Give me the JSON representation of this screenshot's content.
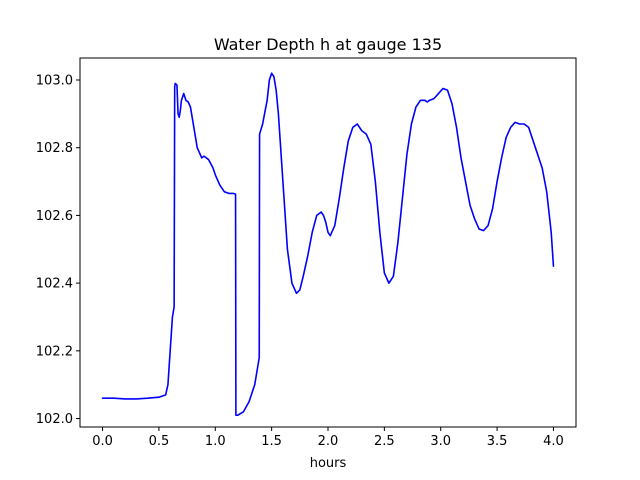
{
  "chart_data": {
    "type": "line",
    "title": "Water Depth h at gauge 135",
    "xlabel": "hours",
    "ylabel": "",
    "xlim": [
      -0.2,
      4.2
    ],
    "ylim": [
      101.975,
      103.065
    ],
    "xticks": [
      0.0,
      0.5,
      1.0,
      1.5,
      2.0,
      2.5,
      3.0,
      3.5,
      4.0
    ],
    "xtick_labels": [
      "0.0",
      "0.5",
      "1.0",
      "1.5",
      "2.0",
      "2.5",
      "3.0",
      "3.5",
      "4.0"
    ],
    "yticks": [
      102.0,
      102.2,
      102.4,
      102.6,
      102.8,
      103.0
    ],
    "ytick_labels": [
      "102.0",
      "102.2",
      "102.4",
      "102.6",
      "102.8",
      "103.0"
    ],
    "grid": false,
    "series": [
      {
        "color": "#0000ff",
        "x": [
          0.0,
          0.1,
          0.2,
          0.3,
          0.4,
          0.5,
          0.56,
          0.58,
          0.6,
          0.62,
          0.635,
          0.64,
          0.645,
          0.66,
          0.67,
          0.68,
          0.69,
          0.7,
          0.72,
          0.74,
          0.76,
          0.78,
          0.8,
          0.84,
          0.88,
          0.9,
          0.94,
          0.98,
          1.0,
          1.04,
          1.08,
          1.12,
          1.16,
          1.18,
          1.183,
          1.2,
          1.25,
          1.3,
          1.35,
          1.39,
          1.393,
          1.42,
          1.46,
          1.48,
          1.5,
          1.52,
          1.54,
          1.56,
          1.6,
          1.64,
          1.68,
          1.72,
          1.75,
          1.78,
          1.82,
          1.86,
          1.9,
          1.94,
          1.96,
          1.98,
          2.0,
          2.02,
          2.06,
          2.1,
          2.14,
          2.18,
          2.22,
          2.26,
          2.3,
          2.34,
          2.38,
          2.42,
          2.46,
          2.5,
          2.54,
          2.58,
          2.62,
          2.66,
          2.7,
          2.74,
          2.78,
          2.82,
          2.86,
          2.88,
          2.9,
          2.94,
          2.98,
          3.02,
          3.06,
          3.1,
          3.14,
          3.18,
          3.22,
          3.26,
          3.3,
          3.34,
          3.38,
          3.42,
          3.46,
          3.5,
          3.54,
          3.58,
          3.62,
          3.66,
          3.7,
          3.74,
          3.78,
          3.82,
          3.86,
          3.9,
          3.94,
          3.98,
          4.0
        ],
        "y": [
          102.06,
          102.06,
          102.058,
          102.058,
          102.06,
          102.063,
          102.07,
          102.1,
          102.2,
          102.3,
          102.33,
          102.98,
          102.99,
          102.985,
          102.9,
          102.89,
          102.91,
          102.94,
          102.96,
          102.94,
          102.935,
          102.92,
          102.88,
          102.8,
          102.77,
          102.775,
          102.765,
          102.74,
          102.72,
          102.69,
          102.67,
          102.665,
          102.665,
          102.663,
          102.01,
          102.01,
          102.02,
          102.05,
          102.1,
          102.18,
          102.84,
          102.87,
          102.94,
          103.0,
          103.02,
          103.01,
          102.97,
          102.9,
          102.7,
          102.5,
          102.4,
          102.37,
          102.38,
          102.42,
          102.48,
          102.55,
          102.6,
          102.61,
          102.6,
          102.58,
          102.55,
          102.54,
          102.57,
          102.65,
          102.74,
          102.82,
          102.86,
          102.87,
          102.85,
          102.84,
          102.81,
          102.7,
          102.55,
          102.43,
          102.4,
          102.42,
          102.52,
          102.65,
          102.78,
          102.87,
          102.92,
          102.94,
          102.94,
          102.935,
          102.94,
          102.945,
          102.96,
          102.975,
          102.97,
          102.93,
          102.86,
          102.77,
          102.7,
          102.63,
          102.59,
          102.56,
          102.555,
          102.57,
          102.62,
          102.7,
          102.77,
          102.83,
          102.86,
          102.875,
          102.87,
          102.87,
          102.86,
          102.82,
          102.78,
          102.74,
          102.67,
          102.55,
          102.45
        ]
      }
    ]
  }
}
